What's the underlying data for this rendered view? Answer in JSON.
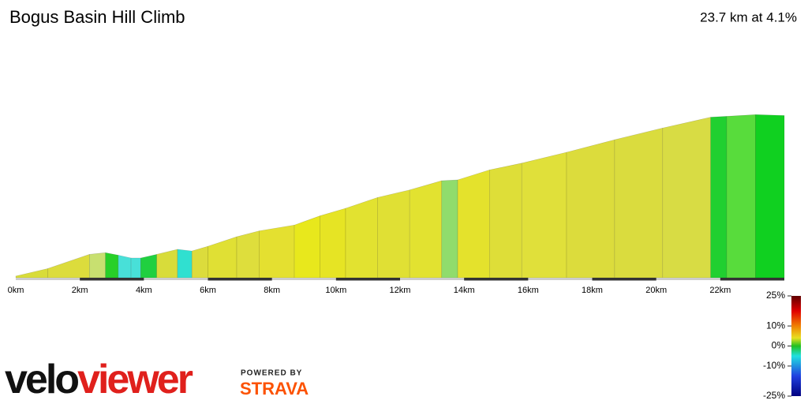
{
  "chart_data": {
    "type": "elevation-profile",
    "title": "Bogus Basin Hill Climb",
    "summary": "23.7 km at 4.1%",
    "x": [
      0,
      1.0,
      2.3,
      2.8,
      3.2,
      3.6,
      3.9,
      4.4,
      5.05,
      5.5,
      6.0,
      6.9,
      7.6,
      8.7,
      9.5,
      10.3,
      11.3,
      12.3,
      13.3,
      13.8,
      14.8,
      15.8,
      17.2,
      18.7,
      20.2,
      21.7,
      22.2,
      23.1,
      24.0
    ],
    "elevation": [
      10,
      55,
      140,
      150,
      135,
      118,
      118,
      140,
      170,
      160,
      188,
      245,
      280,
      315,
      370,
      415,
      480,
      525,
      580,
      585,
      645,
      685,
      750,
      825,
      895,
      960,
      965,
      975,
      970
    ],
    "segment_colors": [
      "#d8dc3a",
      "#dcdc3c",
      "#c8e070",
      "#28d028",
      "#48e0d8",
      "#48e0d8",
      "#20d040",
      "#d8dc3a",
      "#30e0d0",
      "#dcdc3c",
      "#e0e034",
      "#dede3c",
      "#e4e030",
      "#e8e81c",
      "#e6e424",
      "#e2e230",
      "#e0e034",
      "#e2e230",
      "#90dc6c",
      "#e4e22c",
      "#dede38",
      "#e0e03a",
      "#dcdc3c",
      "#dadc3e",
      "#d8dc44",
      "#20d030",
      "#58dc3c",
      "#10d020"
    ],
    "xlim": [
      0,
      24
    ],
    "ylim": [
      0,
      1000
    ],
    "xticks": [
      {
        "value": 0,
        "label": "0km"
      },
      {
        "value": 2,
        "label": "2km"
      },
      {
        "value": 4,
        "label": "4km"
      },
      {
        "value": 6,
        "label": "6km"
      },
      {
        "value": 8,
        "label": "8km"
      },
      {
        "value": 10,
        "label": "10km"
      },
      {
        "value": 12,
        "label": "12km"
      },
      {
        "value": 14,
        "label": "14km"
      },
      {
        "value": 16,
        "label": "16km"
      },
      {
        "value": 18,
        "label": "18km"
      },
      {
        "value": 20,
        "label": "20km"
      },
      {
        "value": 22,
        "label": "22km"
      }
    ],
    "gradient_scale": {
      "lim": [
        -25,
        25
      ],
      "ticks": [
        {
          "value": 25,
          "label": "25%"
        },
        {
          "value": 10,
          "label": "10%"
        },
        {
          "value": 0,
          "label": "0%"
        },
        {
          "value": -10,
          "label": "-10%"
        },
        {
          "value": -25,
          "label": "-25%"
        }
      ]
    }
  },
  "branding": {
    "logo_part1": "velo",
    "logo_part2": "viewer",
    "powered_by": "POWERED BY",
    "strava": "STRAVA"
  }
}
